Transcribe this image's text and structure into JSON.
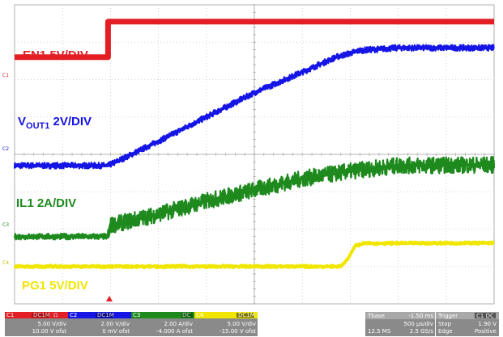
{
  "chart_data": {
    "type": "line",
    "title": "",
    "xlabel": "",
    "ylabel": "",
    "grid": true,
    "xlim": [
      0,
      10
    ],
    "x_units": "divisions (500 µs/div)",
    "series": [
      {
        "name": "EN1",
        "label": "EN1 5V/DIV",
        "color": "#e31e24",
        "level_div": [
          [
            0,
            6.6
          ],
          [
            1.95,
            6.6
          ],
          [
            1.95,
            7.55
          ],
          [
            10,
            7.55
          ]
        ]
      },
      {
        "name": "VOUT1",
        "label_main": "V",
        "label_sub": "OUT1",
        "label_rest": " 2V/DIV",
        "color": "#1515e6",
        "level_div": [
          [
            0,
            3.7
          ],
          [
            1.95,
            3.7
          ],
          [
            2.2,
            3.85
          ],
          [
            3,
            4.35
          ],
          [
            4,
            5.0
          ],
          [
            5,
            5.65
          ],
          [
            6,
            6.2
          ],
          [
            6.7,
            6.6
          ],
          [
            7.2,
            6.78
          ],
          [
            8,
            6.85
          ],
          [
            10,
            6.85
          ]
        ],
        "noise_div": 0.08
      },
      {
        "name": "IL1",
        "label": "IL1  2A/DIV",
        "color": "#1e8a1e",
        "level_div": [
          [
            0,
            1.8
          ],
          [
            1.95,
            1.8
          ],
          [
            2.0,
            2.1
          ],
          [
            3,
            2.4
          ],
          [
            4,
            2.75
          ],
          [
            5,
            3.05
          ],
          [
            6,
            3.35
          ],
          [
            7,
            3.55
          ],
          [
            8,
            3.7
          ],
          [
            10,
            3.72
          ]
        ],
        "noise_div_before": 0.08,
        "noise_div_after": 0.22
      },
      {
        "name": "PG1",
        "label": "PG1 5V/DIV",
        "color": "#f0e600",
        "level_div": [
          [
            0,
            1.0
          ],
          [
            6.8,
            1.0
          ],
          [
            6.95,
            1.2
          ],
          [
            7.1,
            1.55
          ],
          [
            7.3,
            1.62
          ],
          [
            10,
            1.63
          ]
        ],
        "noise_div": 0.05
      }
    ],
    "channel_markers": [
      "C1",
      "C2",
      "C3",
      "C4"
    ]
  },
  "status_bar": {
    "ch1": {
      "tag": "C1",
      "badge1": "DC1M",
      "badge2": "Ω",
      "line1": "5.00 V/div",
      "line2": "10.00 V ofst"
    },
    "ch2": {
      "tag": "C2",
      "badge1": "DC1M",
      "badge2": "",
      "line1": "2.00 V/div",
      "line2": "0 mV ofst"
    },
    "ch3": {
      "tag": "C3",
      "badge1": "DC",
      "badge2": "",
      "line1": "2.00 A/div",
      "line2": "-4.000 A ofst"
    },
    "ch4": {
      "tag": "C4",
      "badge1": "DC1M",
      "badge2": "",
      "line1": "5.00 V/div",
      "line2": "-15.00 V ofst"
    },
    "tbase": {
      "title": "Tbase",
      "value": "-1.50 ms",
      "line1": "500 µs/div",
      "line2a": "12.5 MS",
      "line2b": "2.5 GS/s"
    },
    "trigger": {
      "title": "Trigger",
      "badge": "C1 DC",
      "line1a": "Stop",
      "line1b": "1.90 V",
      "line2a": "Edge",
      "line2b": "Positive"
    }
  }
}
